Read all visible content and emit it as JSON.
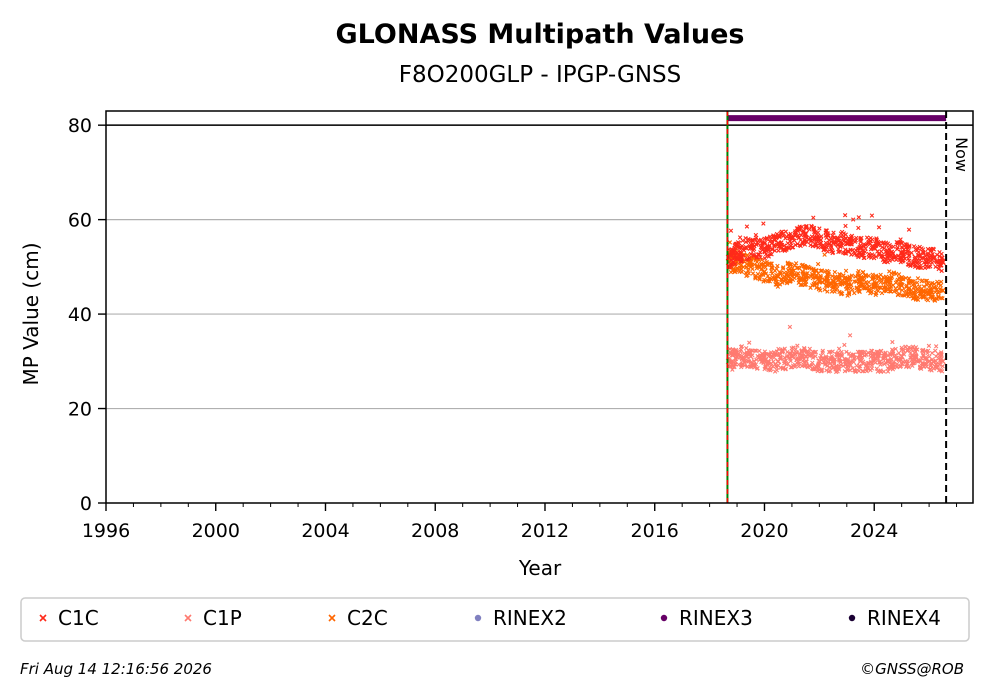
{
  "chart_data": {
    "type": "scatter",
    "title": "GLONASS Multipath Values",
    "subtitle": "F8O200GLP - IPGP-GNSS",
    "xlabel": "Year",
    "ylabel": "MP Value (cm)",
    "xlim": [
      1996,
      2027.6
    ],
    "ylim": [
      0,
      83
    ],
    "x_ticks": [
      1996,
      2000,
      2004,
      2008,
      2012,
      2016,
      2020,
      2024
    ],
    "y_ticks": [
      0,
      20,
      40,
      60,
      80
    ],
    "grid": "horizontal",
    "legend_position": "bottom",
    "now_label": "Now",
    "now_x": 2026.62,
    "start_x": 2018.65,
    "series": [
      {
        "name": "C1C",
        "color": "#ff2a1a",
        "marker": "x",
        "x": [
          2018.7,
          2019.0,
          2019.5,
          2020.0,
          2020.5,
          2021.0,
          2021.5,
          2022.0,
          2022.5,
          2023.0,
          2023.5,
          2024.0,
          2024.5,
          2025.0,
          2025.5,
          2026.0,
          2026.5
        ],
        "y": [
          52,
          53,
          54,
          54,
          55,
          56,
          57,
          56,
          55,
          55,
          54,
          54,
          53,
          53,
          52,
          52,
          51
        ]
      },
      {
        "name": "C1P",
        "color": "#ff7a70",
        "marker": "x",
        "x": [
          2018.7,
          2019.0,
          2019.5,
          2020.0,
          2020.5,
          2021.0,
          2021.5,
          2022.0,
          2022.5,
          2023.0,
          2023.5,
          2024.0,
          2024.5,
          2025.0,
          2025.5,
          2026.0,
          2026.5
        ],
        "y": [
          30,
          31,
          31,
          30,
          30,
          31,
          31,
          30,
          30,
          30,
          30,
          30,
          30,
          31,
          31,
          30,
          30
        ]
      },
      {
        "name": "C2C",
        "color": "#ff6600",
        "marker": "x",
        "x": [
          2018.7,
          2019.0,
          2019.5,
          2020.0,
          2020.5,
          2021.0,
          2021.5,
          2022.0,
          2022.5,
          2023.0,
          2023.5,
          2024.0,
          2024.5,
          2025.0,
          2025.5,
          2026.0,
          2026.5
        ],
        "y": [
          51,
          51,
          50,
          49,
          48,
          49,
          48,
          47,
          47,
          46,
          47,
          46,
          47,
          46,
          45,
          45,
          45
        ]
      },
      {
        "name": "RINEX2",
        "color": "#8080c0",
        "marker": "dot",
        "x": [],
        "y": []
      },
      {
        "name": "RINEX3",
        "color": "#660066",
        "marker": "dot",
        "x": [
          2018.65,
          2026.62
        ],
        "y": [
          81.5,
          81.5
        ]
      },
      {
        "name": "RINEX4",
        "color": "#1a0033",
        "marker": "dot",
        "x": [],
        "y": []
      }
    ]
  },
  "footer": {
    "timestamp": "Fri Aug 14 12:16:56 2026",
    "copyright": "©GNSS@ROB"
  }
}
